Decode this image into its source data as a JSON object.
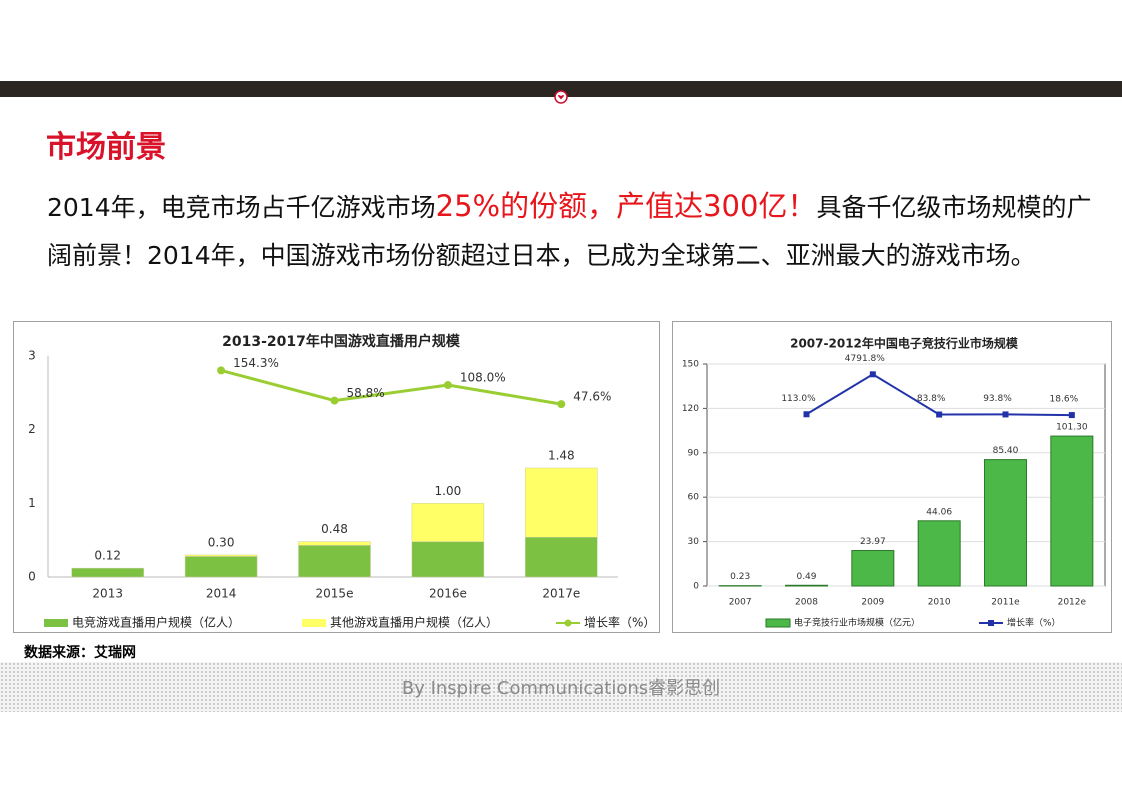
{
  "header": {
    "title": "市场前景"
  },
  "body": [
    {
      "text": "2014年，电竞市场占千亿游戏市场",
      "highlight": false
    },
    {
      "text": "25%的份额，产值达300亿！",
      "highlight": true
    },
    {
      "text": "具备千亿级市场规模的广阔前景！2014年，中国游戏市场份额超过日本，已成为全球第二、亚洲最大的游戏市场。",
      "highlight": false
    }
  ],
  "chart_data": [
    {
      "type": "bar",
      "title": "2013-2017年中国游戏直播用户规模",
      "categories": [
        "2013",
        "2014",
        "2015e",
        "2016e",
        "2017e"
      ],
      "stacked": true,
      "series": [
        {
          "name": "电竞游戏直播用户规模（亿人）",
          "type": "bar",
          "color": "#7cc142",
          "values": [
            0.12,
            0.28,
            0.43,
            0.48,
            0.54
          ]
        },
        {
          "name": "其他游戏直播用户规模（亿人）",
          "type": "bar",
          "color": "#ffff66",
          "values": [
            0,
            0.02,
            0.05,
            0.52,
            0.94
          ]
        },
        {
          "name": "增长率（%）",
          "type": "line",
          "axis": "y2",
          "color": "#9acd32",
          "values": [
            null,
            154.3,
            58.8,
            108.0,
            47.6
          ],
          "value_labels": [
            null,
            "154.3%",
            "58.8%",
            "108.0%",
            "47.6%"
          ]
        }
      ],
      "totals": [
        0.12,
        0.3,
        0.48,
        1.0,
        1.48
      ],
      "total_labels": [
        "0.12",
        "0.30",
        "0.48",
        "1.00",
        "1.48"
      ],
      "ylim": [
        0,
        3
      ],
      "yticks": [
        0,
        1,
        2,
        3
      ],
      "y2lim": [
        -500,
        200
      ],
      "grid": false
    },
    {
      "type": "bar",
      "title": "2007-2012年中国电子竞技行业市场规模",
      "categories": [
        "2007",
        "2008",
        "2009",
        "2010",
        "2011e",
        "2012e"
      ],
      "stacked": false,
      "series": [
        {
          "name": "电子竞技行业市场规模（亿元）",
          "type": "bar",
          "color": "#4cb848",
          "values": [
            0.23,
            0.49,
            23.97,
            44.06,
            85.4,
            101.3
          ],
          "value_labels": [
            "0.23",
            "0.49",
            "23.97",
            "44.06",
            "85.40",
            "101.30"
          ]
        },
        {
          "name": "增长率（%）",
          "type": "line",
          "axis": "y2",
          "color": "#2233aa",
          "values": [
            null,
            113.0,
            4791.8,
            83.8,
            93.8,
            18.6
          ],
          "value_labels": [
            null,
            "113.0%",
            "4791.8%",
            "83.8%",
            "93.8%",
            "18.6%"
          ]
        }
      ],
      "ylim": [
        0,
        150
      ],
      "yticks": [
        0,
        30,
        60,
        90,
        120,
        150
      ],
      "y2lim": [
        -20000,
        6000
      ],
      "grid": true
    }
  ],
  "source": "数据来源：艾瑞网",
  "footer": "By Inspire Communications睿影思创"
}
